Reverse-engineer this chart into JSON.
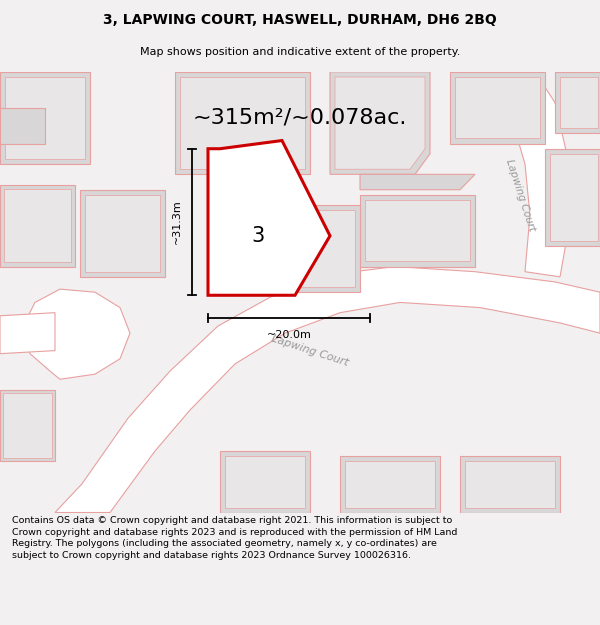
{
  "title_line1": "3, LAPWING COURT, HASWELL, DURHAM, DH6 2BQ",
  "title_line2": "Map shows position and indicative extent of the property.",
  "area_text": "~315m²/~0.078ac.",
  "property_number": "3",
  "dim_vertical": "~31.3m",
  "dim_horizontal": "~20.0m",
  "road_label": "Lapwing Court",
  "road_label2": "Lapwing Court",
  "footer_text": "Contains OS data © Crown copyright and database right 2021. This information is subject to Crown copyright and database rights 2023 and is reproduced with the permission of HM Land Registry. The polygons (including the associated geometry, namely x, y co-ordinates) are subject to Crown copyright and database rights 2023 Ordnance Survey 100026316.",
  "bg_color": "#f2f0f0",
  "map_bg": "#f2f0f0",
  "building_fill": "#d8d6d6",
  "building_edge": "#e8a0a0",
  "road_fill": "#ffffff",
  "road_edge": "#e8a0a0",
  "highlight_edge": "#cc0000",
  "highlight_fill": "#ffffff",
  "footer_bg": "#ffffff"
}
